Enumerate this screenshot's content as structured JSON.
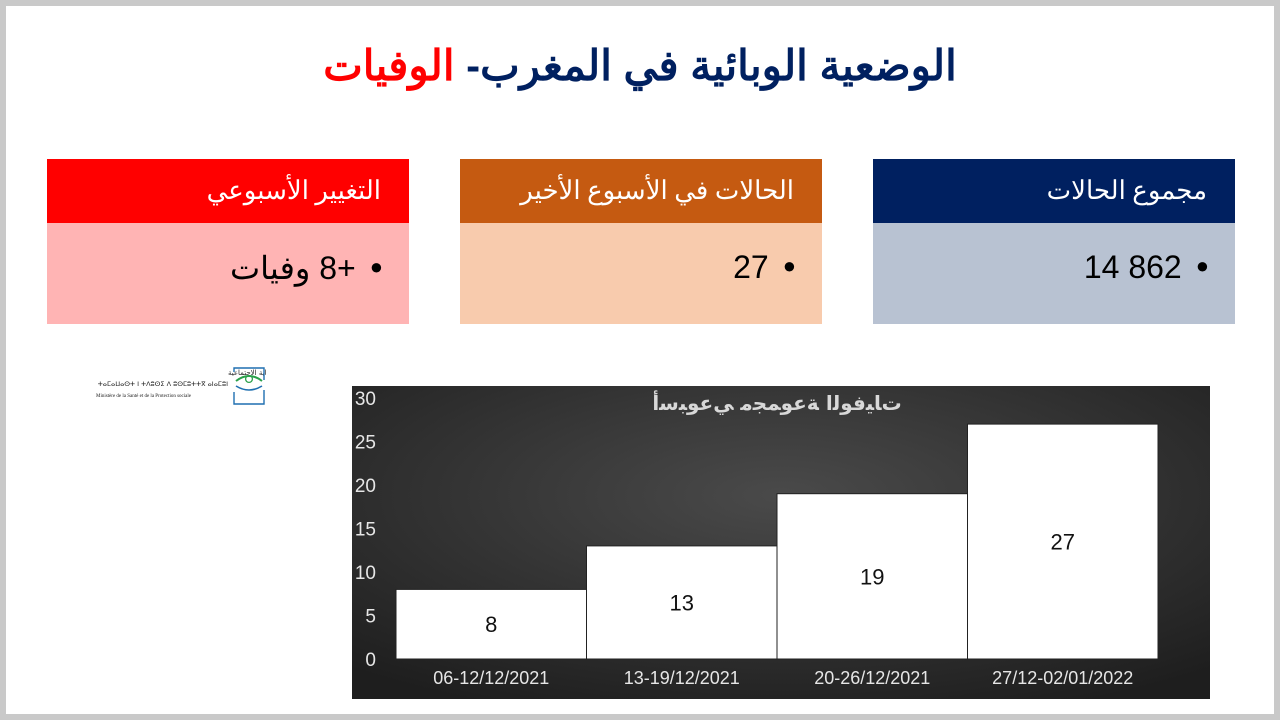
{
  "title": {
    "main": "الوضعية الوبائية في المغرب-",
    "accent": "الوفيات"
  },
  "cards": {
    "total": {
      "label": "مجموع الحالات",
      "value": "14 862"
    },
    "last_week": {
      "label": "الحالات في الأسبوع الأخير",
      "value": "27"
    },
    "weekly_change": {
      "label": "التغيير الأسبوعي",
      "value": "+8 وفيات"
    }
  },
  "logo": {
    "line1": "وزارة الصحة والحماية الاجتماعية",
    "line2": "ⵜⴰⵎⴰⵡⴰⵙⵜ ⵏ ⵜⴷⵓⵙⵉ ⴷ ⵓⵙⵎⵓⵜⵜⴳ ⴰⵏⴰⵎⵓⵏ",
    "line3": "Ministère de la Santé et de la Protection sociale"
  },
  "colors": {
    "navy": "#002060",
    "orange": "#c55a11",
    "red": "#ff0000",
    "chart_bg": "#2a2a2a",
    "bar": "#ffffff"
  },
  "chart_data": {
    "type": "bar",
    "title": "ﺕﺎﻴﻓﻮﻟﺍ ﺔﻋﻮﻤﺠﻣ ﻲﻋﻮﺒﺳﺃ",
    "categories": [
      "06-12/12/2021",
      "13-19/12/2021",
      "20-26/12/2021",
      "27/12-02/01/2022"
    ],
    "values": [
      8,
      13,
      19,
      27
    ],
    "data_labels": [
      "8",
      "13",
      "19",
      "27"
    ],
    "ylim": [
      0,
      30
    ],
    "yticks": [
      "0",
      "5",
      "10",
      "15",
      "20",
      "25",
      "30"
    ],
    "grid": false,
    "legend": "none"
  }
}
